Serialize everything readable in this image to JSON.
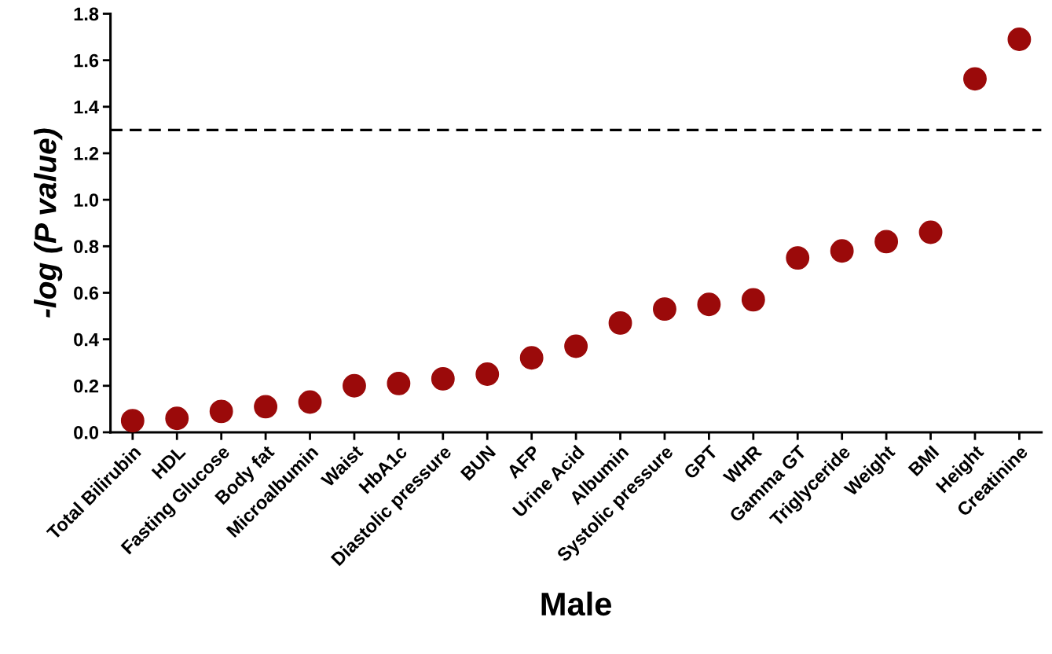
{
  "chart_data": {
    "type": "scatter",
    "xlabel": "Male",
    "ylabel": "-log (P value)",
    "categories": [
      "Total Bilirubin",
      "HDL",
      "Fasting Glucose",
      "Body fat",
      "Microalbumin",
      "Waist",
      "HbA1c",
      "Diastolic pressure",
      "BUN",
      "AFP",
      "Urine Acid",
      "Albumin",
      "Systolic pressure",
      "GPT",
      "WHR",
      "Gamma GT",
      "Triglyceride",
      "Weight",
      "BMI",
      "Height",
      "Creatinine"
    ],
    "values": [
      0.05,
      0.06,
      0.09,
      0.11,
      0.13,
      0.2,
      0.21,
      0.23,
      0.25,
      0.32,
      0.37,
      0.47,
      0.53,
      0.55,
      0.57,
      0.75,
      0.78,
      0.82,
      0.86,
      1.52,
      1.69
    ],
    "color": "#9b0a0a",
    "marker": "circle",
    "ylim": [
      0,
      1.8
    ],
    "yticks": [
      {
        "value": 0,
        "label": "0.0"
      },
      {
        "value": 0.2,
        "label": "0.2"
      },
      {
        "value": 0.4,
        "label": "0.4"
      },
      {
        "value": 0.6,
        "label": "0.6"
      },
      {
        "value": 0.8,
        "label": "0.8"
      },
      {
        "value": 1,
        "label": "1.0"
      },
      {
        "value": 1.2,
        "label": "1.2"
      },
      {
        "value": 1.4,
        "label": "1.4"
      },
      {
        "value": 1.6,
        "label": "1.6"
      },
      {
        "value": 1.8,
        "label": "1.8"
      }
    ],
    "ref_lines": [
      {
        "axis": "y",
        "value": 1.3,
        "line_style": "dashed",
        "color": "#000000"
      }
    ],
    "grid": false
  }
}
